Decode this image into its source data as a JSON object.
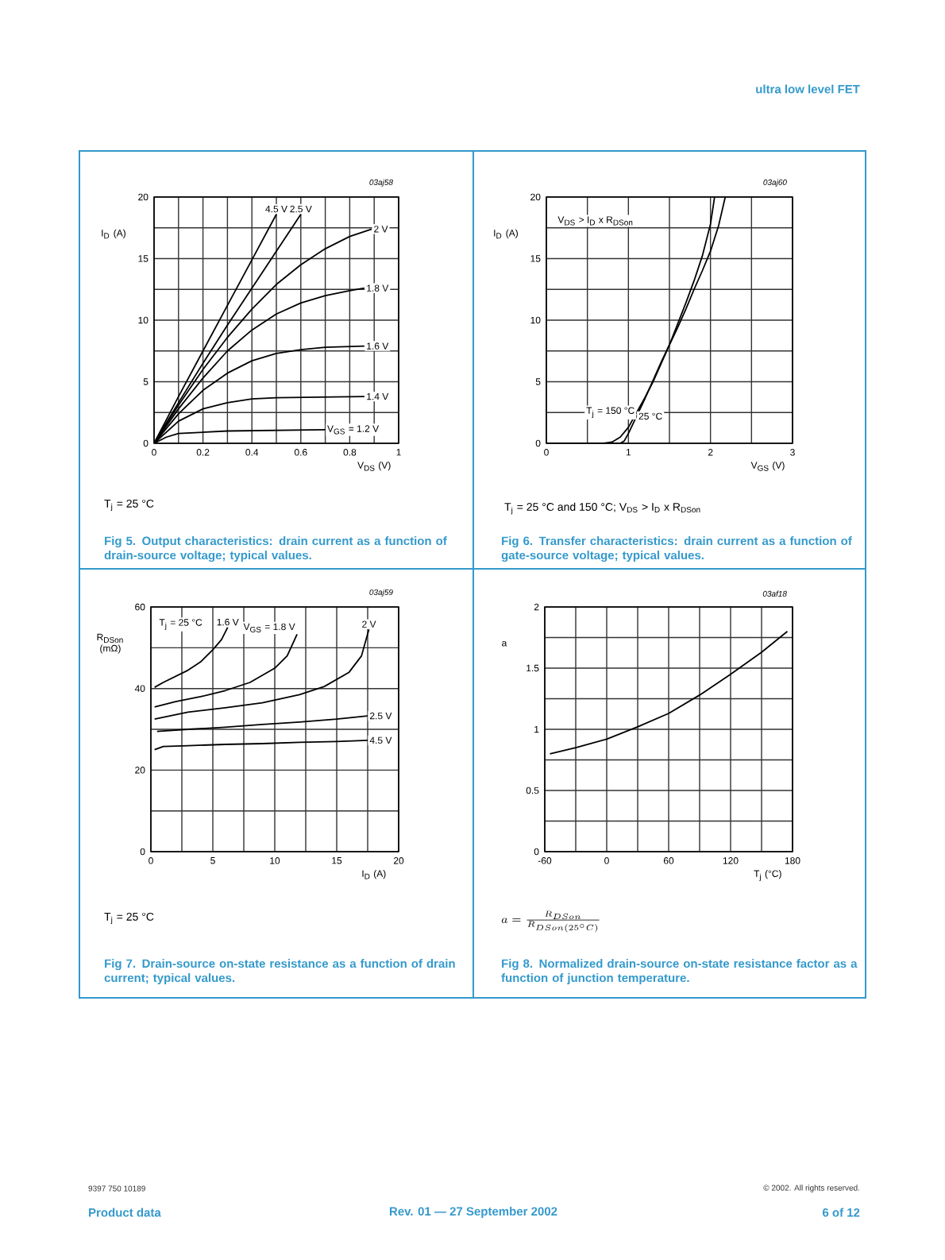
{
  "chart_data": [
    {
      "type": "line",
      "title": "Fig 5. Output characteristics: drain current as a function of drain-source voltage; typical values.",
      "xlabel": "V$_{DS}$ (V)",
      "ylabel": "I$_{D}$ (A)",
      "xlim": [
        0,
        1
      ],
      "ylim": [
        0,
        20
      ],
      "xticks": [
        0,
        {
          "value": 0.1,
          "label": null
        },
        0.2,
        {
          "value": 0.3,
          "label": null
        },
        0.4,
        {
          "value": 0.5,
          "label": null
        },
        0.6,
        {
          "value": 0.7,
          "label": null
        },
        0.8,
        {
          "value": 0.9,
          "label": null
        },
        1
      ],
      "yticks": [
        0,
        {
          "value": 2.5,
          "label": null
        },
        5,
        {
          "value": 7.5,
          "label": null
        },
        10,
        {
          "value": 12.5,
          "label": null
        },
        15,
        {
          "value": 17.5,
          "label": null
        },
        20
      ],
      "grid": true,
      "legend": false,
      "marker": "none",
      "line_style": "solid",
      "annotations": [
        "T$_{j}$ = 25 °C",
        "03aj58",
        "ultra low level FET"
      ],
      "series": [
        {
          "name": "4.5 V",
          "color": "#000000",
          "x": [
            0,
            0.1,
            0.2,
            0.3,
            0.4,
            0.5
          ],
          "values": [
            0,
            3.8,
            7.5,
            11.2,
            14.9,
            18.6
          ]
        },
        {
          "name": "2.5 V",
          "color": "#000000",
          "x": [
            0,
            0.1,
            0.2,
            0.3,
            0.4,
            0.5,
            0.6
          ],
          "values": [
            0,
            3.3,
            6.5,
            9.6,
            12.6,
            15.6,
            18.6
          ]
        },
        {
          "name": "2 V",
          "color": "#000000",
          "x": [
            0,
            0.1,
            0.2,
            0.3,
            0.4,
            0.5,
            0.6,
            0.7,
            0.8,
            0.89
          ],
          "values": [
            0,
            3.1,
            6.0,
            8.6,
            10.9,
            12.9,
            14.5,
            15.8,
            16.8,
            17.4
          ]
        },
        {
          "name": "1.8 V",
          "color": "#000000",
          "x": [
            0,
            0.1,
            0.2,
            0.3,
            0.4,
            0.5,
            0.6,
            0.7,
            0.8,
            0.86
          ],
          "values": [
            0,
            2.8,
            5.3,
            7.5,
            9.2,
            10.5,
            11.4,
            12.0,
            12.4,
            12.6
          ]
        },
        {
          "name": "1.6 V",
          "color": "#000000",
          "x": [
            0,
            0.1,
            0.2,
            0.3,
            0.4,
            0.5,
            0.6,
            0.7,
            0.86
          ],
          "values": [
            0,
            2.4,
            4.3,
            5.7,
            6.7,
            7.3,
            7.6,
            7.8,
            7.9
          ]
        },
        {
          "name": "1.4 V",
          "color": "#000000",
          "x": [
            0,
            0.1,
            0.2,
            0.3,
            0.4,
            0.5,
            0.86
          ],
          "values": [
            0,
            1.8,
            2.8,
            3.3,
            3.6,
            3.7,
            3.8
          ]
        },
        {
          "name": "V$_{GS}$ = 1.2 V",
          "color": "#000000",
          "x": [
            0,
            0.05,
            0.1,
            0.2,
            0.3,
            0.7
          ],
          "values": [
            0,
            0.5,
            0.8,
            0.9,
            1.0,
            1.1
          ]
        }
      ]
    },
    {
      "type": "line",
      "title": "Fig 6. Transfer characteristics: drain current as a function of gate-source voltage; typical values.",
      "xlabel": "V$_{GS}$ (V)",
      "ylabel": "I$_{D}$ (A)",
      "xlim": [
        0,
        3
      ],
      "ylim": [
        0,
        20
      ],
      "xticks": [
        0,
        {
          "value": 0.5,
          "label": null
        },
        1,
        {
          "value": 1.5,
          "label": null
        },
        2,
        {
          "value": 2.5,
          "label": null
        },
        3
      ],
      "yticks": [
        0,
        {
          "value": 2.5,
          "label": null
        },
        5,
        {
          "value": 7.5,
          "label": null
        },
        10,
        {
          "value": 12.5,
          "label": null
        },
        15,
        {
          "value": 17.5,
          "label": null
        },
        20
      ],
      "grid": true,
      "legend": false,
      "marker": "none",
      "line_style": "solid",
      "annotations": [
        "V$_{DS}$ > I$_{D}$ x R$_{DSon}$",
        "T$_{j}$ = 25 °C and 150 °C; V$_{DS}$ > I$_{D}$ x R$_{DSon}$",
        "03aj60"
      ],
      "series": [
        {
          "name": "T$_{j}$ = 150 °C",
          "color": "#000000",
          "x": [
            0,
            0.7,
            0.8,
            0.9,
            1.0,
            1.1,
            1.2,
            1.3,
            1.4,
            1.5,
            1.6,
            1.7,
            1.8,
            1.9,
            2.0,
            2.1,
            2.18
          ],
          "values": [
            0,
            0,
            0.1,
            0.5,
            1.3,
            2.5,
            3.7,
            5.0,
            6.5,
            8.0,
            9.4,
            10.9,
            12.5,
            14.0,
            15.6,
            17.7,
            20
          ]
        },
        {
          "name": "25 °C",
          "color": "#000000",
          "x": [
            0,
            0.9,
            0.95,
            1.0,
            1.1,
            1.2,
            1.3,
            1.4,
            1.5,
            1.6,
            1.7,
            1.8,
            1.9,
            2.0,
            2.05
          ],
          "values": [
            0,
            0,
            0.2,
            0.8,
            2.2,
            3.6,
            5.1,
            6.6,
            8.0,
            9.7,
            11.4,
            13.2,
            15.2,
            17.8,
            20
          ]
        }
      ]
    },
    {
      "type": "line",
      "title": "Fig 7. Drain-source on-state resistance as a function of drain current; typical values.",
      "xlabel": "I$_{D}$ (A)",
      "ylabel": "R$_{DSon}$ (mΩ)",
      "xlim": [
        0,
        20
      ],
      "ylim": [
        0,
        60
      ],
      "xticks": [
        0,
        {
          "value": 2.5,
          "label": null
        },
        5,
        {
          "value": 7.5,
          "label": null
        },
        10,
        {
          "value": 12.5,
          "label": null
        },
        15,
        {
          "value": 17.5,
          "label": null
        },
        20
      ],
      "yticks": [
        0,
        {
          "value": 10,
          "label": null
        },
        20,
        {
          "value": 30,
          "label": null
        },
        40,
        {
          "value": 50,
          "label": null
        },
        60
      ],
      "grid": true,
      "legend": false,
      "marker": "none",
      "line_style": "solid",
      "annotations": [
        "T$_{j}$ = 25 °C",
        "T$_{j}$ = 25 °C",
        "03aj59"
      ],
      "series": [
        {
          "name": "1.6 V",
          "color": "#000000",
          "x": [
            0.3,
            1,
            2,
            3,
            4,
            5,
            5.7,
            6.2
          ],
          "values": [
            40.3,
            41.5,
            43,
            44.5,
            46.5,
            49.5,
            52,
            55
          ]
        },
        {
          "name": "V$_{GS}$ = 1.8 V",
          "color": "#000000",
          "x": [
            0.3,
            2,
            4,
            6,
            8,
            10,
            11,
            11.8
          ],
          "values": [
            35.5,
            36.8,
            38,
            39.5,
            41.5,
            45,
            48,
            53.3
          ]
        },
        {
          "name": "2 V",
          "color": "#000000",
          "x": [
            0.3,
            3,
            6,
            9,
            12,
            14,
            16,
            17,
            17.6
          ],
          "values": [
            32.5,
            34.2,
            35.3,
            36.5,
            38.5,
            40.5,
            44,
            48,
            54.5
          ]
        },
        {
          "name": "2.5 V",
          "color": "#000000",
          "x": [
            0.5,
            3,
            6,
            9,
            12,
            15,
            17.5
          ],
          "values": [
            29.5,
            30,
            30.5,
            31.2,
            31.8,
            32.5,
            33.3
          ]
        },
        {
          "name": "4.5 V",
          "color": "#000000",
          "x": [
            0.3,
            1,
            3,
            6,
            9,
            12,
            15,
            17.5
          ],
          "values": [
            25,
            25.8,
            26,
            26.3,
            26.5,
            26.8,
            27,
            27.3
          ]
        }
      ]
    },
    {
      "type": "line",
      "title": "Fig 8. Normalized drain-source on-state resistance factor as a function of junction temperature.",
      "xlabel": "T$_{j}$ (°C)",
      "ylabel": "a",
      "xlim": [
        -60,
        180
      ],
      "ylim": [
        0,
        2
      ],
      "xticks": [
        -60,
        {
          "value": -30,
          "label": null
        },
        0,
        {
          "value": 30,
          "label": null
        },
        60,
        {
          "value": 90,
          "label": null
        },
        120,
        {
          "value": 150,
          "label": null
        },
        180
      ],
      "yticks": [
        0,
        {
          "value": 0.25,
          "label": null
        },
        0.5,
        {
          "value": 0.75,
          "label": null
        },
        1,
        {
          "value": 1.25,
          "label": null
        },
        1.5,
        {
          "value": 1.75,
          "label": null
        },
        2
      ],
      "grid": true,
      "legend": false,
      "marker": "none",
      "line_style": "solid",
      "annotations": [
        "a = \\frac{R_{DSon}}{R_{DSon(25^{\\circ}C)}}",
        "03af18",
        "9397 750 10189",
        "© 2002. All rights reserved.",
        "Product data",
        "Rev. 01 — 27 September 2002",
        "6 of 12"
      ],
      "series": [
        {
          "color": "#000000",
          "x": [
            -55,
            -30,
            0,
            30,
            60,
            90,
            120,
            150,
            175
          ],
          "values": [
            0.8,
            0.85,
            0.92,
            1.02,
            1.13,
            1.28,
            1.45,
            1.63,
            1.8
          ]
        }
      ]
    }
  ]
}
